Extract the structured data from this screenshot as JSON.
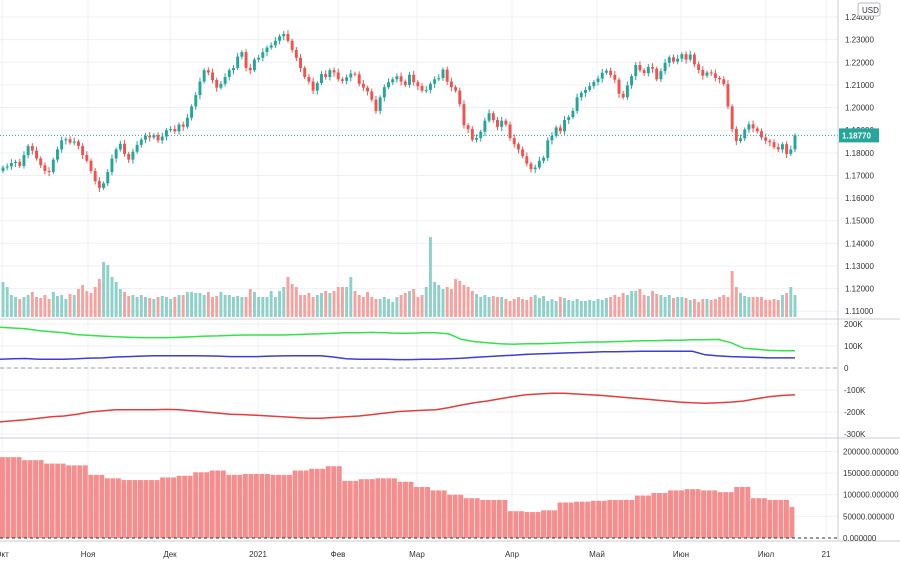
{
  "chart_data": [
    {
      "type": "candlestick",
      "currency_badge": "USD",
      "price_axis": {
        "ticks": [
          "1.24000",
          "1.23000",
          "1.22000",
          "1.21000",
          "1.20000",
          "1.19000",
          "1.18000",
          "1.17000",
          "1.16000",
          "1.15000",
          "1.14000",
          "1.13000",
          "1.12000",
          "1.11000"
        ],
        "range": [
          1.107,
          1.244
        ]
      },
      "last_price": 1.1877,
      "last_price_label": "1.18770",
      "x_axis_labels": [
        "Окт",
        "Ноя",
        "Дек",
        "2021",
        "Фев",
        "Мар",
        "Апр",
        "Май",
        "Июн",
        "Июл",
        "21"
      ],
      "close": [
        1.1735,
        1.174,
        1.1755,
        1.176,
        1.1742,
        1.179,
        1.183,
        1.181,
        1.1775,
        1.1745,
        1.172,
        1.1715,
        1.177,
        1.1815,
        1.1855,
        1.186,
        1.1845,
        1.185,
        1.183,
        1.179,
        1.1765,
        1.172,
        1.1675,
        1.1645,
        1.1665,
        1.1715,
        1.1775,
        1.1815,
        1.184,
        1.1795,
        1.177,
        1.1805,
        1.1835,
        1.1858,
        1.1875,
        1.1868,
        1.1878,
        1.1855,
        1.1872,
        1.19,
        1.1905,
        1.1895,
        1.1925,
        1.1915,
        1.1955,
        1.2005,
        1.2055,
        1.2115,
        1.2165,
        1.2155,
        1.2122,
        1.2088,
        1.2105,
        1.2135,
        1.2165,
        1.2175,
        1.2225,
        1.2245,
        1.2175,
        1.2165,
        1.2212,
        1.222,
        1.2245,
        1.2265,
        1.2275,
        1.2295,
        1.2315,
        1.2325,
        1.2295,
        1.2255,
        1.222,
        1.2175,
        1.2135,
        1.2115,
        1.2075,
        1.2108,
        1.2148,
        1.2135,
        1.2165,
        1.2155,
        1.2125,
        1.2118,
        1.2133,
        1.215,
        1.2147,
        1.2105,
        1.2088,
        1.2071,
        1.2035,
        1.1985,
        1.2045,
        1.209,
        1.2112,
        1.2125,
        1.2138,
        1.2115,
        1.21,
        1.2145,
        1.2112,
        1.2095,
        1.2075,
        1.2078,
        1.2105,
        1.2125,
        1.213,
        1.2168,
        1.2115,
        1.209,
        1.2075,
        1.2015,
        1.1922,
        1.1905,
        1.1858,
        1.1865,
        1.1893,
        1.1942,
        1.1975,
        1.1945,
        1.1915,
        1.1942,
        1.1925,
        1.1865,
        1.1838,
        1.1815,
        1.1785,
        1.1752,
        1.1728,
        1.1735,
        1.1765,
        1.1778,
        1.1855,
        1.1875,
        1.1912,
        1.1895,
        1.1945,
        1.1958,
        1.1985,
        1.2045,
        1.2065,
        1.2078,
        1.2095,
        1.2113,
        1.2128,
        1.2154,
        1.2163,
        1.2144,
        1.2123,
        1.2061,
        1.2045,
        1.2098,
        1.2139,
        1.2188,
        1.2165,
        1.2152,
        1.2179,
        1.2172,
        1.2125,
        1.2161,
        1.2198,
        1.2222,
        1.2203,
        1.2216,
        1.2236,
        1.2212,
        1.2234,
        1.2191,
        1.2166,
        1.2141,
        1.2155,
        1.2151,
        1.2131,
        1.2125,
        1.2104,
        1.2005,
        1.1905,
        1.1852,
        1.1864,
        1.1903,
        1.1926,
        1.1908,
        1.1895,
        1.1868,
        1.1853,
        1.1847,
        1.1825,
        1.1815,
        1.1838,
        1.1795,
        1.1815,
        1.1877
      ],
      "volume_relative": [
        0.35,
        0.3,
        0.22,
        0.2,
        0.18,
        0.2,
        0.22,
        0.25,
        0.2,
        0.19,
        0.22,
        0.18,
        0.25,
        0.21,
        0.22,
        0.18,
        0.23,
        0.22,
        0.28,
        0.32,
        0.26,
        0.24,
        0.3,
        0.38,
        0.55,
        0.52,
        0.4,
        0.35,
        0.28,
        0.25,
        0.21,
        0.22,
        0.2,
        0.22,
        0.2,
        0.19,
        0.18,
        0.2,
        0.21,
        0.2,
        0.18,
        0.2,
        0.22,
        0.22,
        0.25,
        0.25,
        0.24,
        0.24,
        0.22,
        0.25,
        0.2,
        0.21,
        0.25,
        0.22,
        0.22,
        0.2,
        0.21,
        0.2,
        0.2,
        0.28,
        0.25,
        0.2,
        0.2,
        0.2,
        0.26,
        0.2,
        0.26,
        0.3,
        0.4,
        0.33,
        0.3,
        0.22,
        0.22,
        0.24,
        0.2,
        0.22,
        0.24,
        0.26,
        0.24,
        0.26,
        0.3,
        0.3,
        0.3,
        0.4,
        0.26,
        0.22,
        0.2,
        0.25,
        0.2,
        0.18,
        0.18,
        0.2,
        0.18,
        0.15,
        0.2,
        0.22,
        0.24,
        0.26,
        0.28,
        0.2,
        0.22,
        0.3,
        0.8,
        0.35,
        0.32,
        0.28,
        0.3,
        0.28,
        0.38,
        0.36,
        0.32,
        0.3,
        0.26,
        0.23,
        0.2,
        0.22,
        0.2,
        0.21,
        0.2,
        0.2,
        0.18,
        0.16,
        0.18,
        0.2,
        0.18,
        0.17,
        0.2,
        0.22,
        0.19,
        0.21,
        0.16,
        0.18,
        0.16,
        0.2,
        0.19,
        0.17,
        0.16,
        0.18,
        0.16,
        0.16,
        0.17,
        0.16,
        0.18,
        0.17,
        0.19,
        0.2,
        0.22,
        0.2,
        0.24,
        0.22,
        0.26,
        0.26,
        0.28,
        0.22,
        0.21,
        0.26,
        0.23,
        0.22,
        0.2,
        0.22,
        0.19,
        0.2,
        0.2,
        0.19,
        0.17,
        0.18,
        0.15,
        0.18,
        0.18,
        0.17,
        0.18,
        0.2,
        0.22,
        0.2,
        0.46,
        0.3,
        0.24,
        0.21,
        0.2,
        0.2,
        0.2,
        0.2,
        0.17,
        0.17,
        0.18,
        0.17,
        0.22,
        0.24,
        0.3,
        0.22
      ]
    },
    {
      "type": "line",
      "y_ticks": [
        "200K",
        "100K",
        "0",
        "-100K",
        "-200K",
        "-300K"
      ],
      "ylim": [
        -300000,
        200000
      ],
      "series": [
        {
          "color": "#33e34a",
          "values": [
            185000,
            182000,
            178000,
            170000,
            165000,
            160000,
            152000,
            148000,
            145000,
            142000,
            140000,
            138000,
            138000,
            138000,
            140000,
            142000,
            145000,
            146000,
            148000,
            150000,
            150000,
            150000,
            150000,
            152000,
            154000,
            156000,
            158000,
            160000,
            160000,
            162000,
            160000,
            158000,
            158000,
            160000,
            160000,
            155000,
            130000,
            120000,
            115000,
            110000,
            108000,
            110000,
            110000,
            112000,
            114000,
            116000,
            118000,
            118000,
            120000,
            122000,
            124000,
            124000,
            126000,
            126000,
            128000,
            128000,
            130000,
            115000,
            90000,
            85000,
            80000,
            78000,
            78000
          ]
        },
        {
          "color": "#3d3dd9",
          "values": [
            40000,
            42000,
            43000,
            40000,
            40000,
            40000,
            42000,
            45000,
            46000,
            50000,
            52000,
            54000,
            56000,
            56000,
            56000,
            56000,
            55000,
            54000,
            52000,
            52000,
            52000,
            54000,
            55000,
            56000,
            56000,
            56000,
            50000,
            42000,
            40000,
            40000,
            40000,
            38000,
            38000,
            40000,
            40000,
            42000,
            44000,
            48000,
            52000,
            55000,
            58000,
            62000,
            64000,
            66000,
            68000,
            70000,
            72000,
            74000,
            74000,
            75000,
            76000,
            76000,
            76000,
            76000,
            76000,
            60000,
            55000,
            52000,
            50000,
            48000,
            46000,
            46000,
            46000
          ]
        },
        {
          "color": "#e83c3c",
          "values": [
            -245000,
            -240000,
            -235000,
            -228000,
            -222000,
            -218000,
            -210000,
            -200000,
            -195000,
            -190000,
            -190000,
            -190000,
            -190000,
            -188000,
            -190000,
            -195000,
            -200000,
            -205000,
            -210000,
            -212000,
            -215000,
            -218000,
            -222000,
            -225000,
            -228000,
            -228000,
            -225000,
            -222000,
            -218000,
            -212000,
            -205000,
            -198000,
            -195000,
            -192000,
            -190000,
            -180000,
            -168000,
            -158000,
            -150000,
            -140000,
            -130000,
            -122000,
            -118000,
            -115000,
            -115000,
            -118000,
            -122000,
            -125000,
            -130000,
            -135000,
            -140000,
            -145000,
            -150000,
            -155000,
            -158000,
            -160000,
            -158000,
            -155000,
            -150000,
            -140000,
            -130000,
            -125000,
            -122000
          ]
        }
      ]
    },
    {
      "type": "bar",
      "y_ticks": [
        "200000.000000",
        "150000.000000",
        "100000.000000",
        "50000.000000",
        "0.000000"
      ],
      "ylim": [
        0,
        215000
      ],
      "values": [
        187000,
        187000,
        187000,
        187000,
        180000,
        180000,
        180000,
        180000,
        172000,
        172000,
        172000,
        172000,
        168000,
        168000,
        168000,
        168000,
        146000,
        146000,
        146000,
        138000,
        138000,
        138000,
        134000,
        134000,
        134000,
        134000,
        134000,
        134000,
        134000,
        140000,
        140000,
        140000,
        144000,
        144000,
        144000,
        152000,
        152000,
        152000,
        156000,
        156000,
        156000,
        146000,
        146000,
        146000,
        148000,
        148000,
        148000,
        148000,
        148000,
        146000,
        146000,
        146000,
        146000,
        156000,
        156000,
        156000,
        160000,
        160000,
        160000,
        166000,
        166000,
        166000,
        132000,
        132000,
        132000,
        136000,
        136000,
        136000,
        138000,
        138000,
        138000,
        138000,
        130000,
        130000,
        130000,
        118000,
        118000,
        118000,
        110000,
        110000,
        110000,
        100000,
        100000,
        100000,
        92000,
        92000,
        92000,
        88000,
        88000,
        88000,
        88000,
        88000,
        62000,
        62000,
        62000,
        60000,
        60000,
        60000,
        64000,
        64000,
        64000,
        82000,
        82000,
        82000,
        84000,
        84000,
        84000,
        86000,
        86000,
        86000,
        88000,
        88000,
        88000,
        88000,
        88000,
        98000,
        98000,
        98000,
        104000,
        104000,
        104000,
        110000,
        110000,
        110000,
        113000,
        113000,
        113000,
        110000,
        110000,
        110000,
        106000,
        106000,
        106000,
        118000,
        118000,
        118000,
        92000,
        92000,
        92000,
        88000,
        88000,
        88000,
        88000,
        72000
      ]
    }
  ]
}
